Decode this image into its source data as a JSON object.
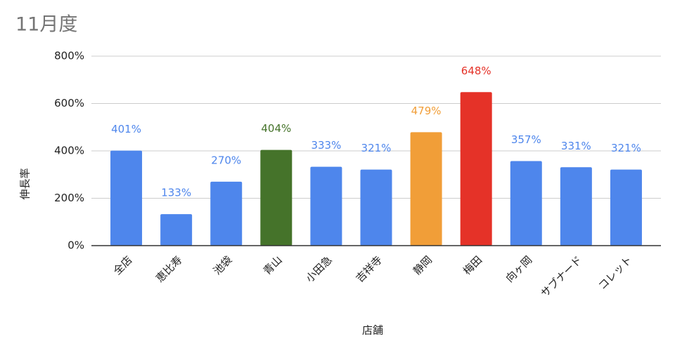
{
  "chart_data": {
    "type": "bar",
    "title": "11月度",
    "x_label": "店舗",
    "y_label": "伸長率",
    "categories": [
      "全店",
      "恵比寿",
      "池袋",
      "青山",
      "小田急",
      "吉祥寺",
      "静岡",
      "梅田",
      "向ヶ岡",
      "サブナード",
      "コレット"
    ],
    "values": [
      401,
      133,
      270,
      404,
      333,
      321,
      479,
      648,
      357,
      331,
      321
    ],
    "value_labels": [
      "401%",
      "133%",
      "270%",
      "404%",
      "333%",
      "321%",
      "479%",
      "648%",
      "357%",
      "331%",
      "321%"
    ],
    "colors": [
      "#4e86ec",
      "#4e86ec",
      "#4e86ec",
      "#45732a",
      "#4e86ec",
      "#4e86ec",
      "#f19e38",
      "#e53228",
      "#4e86ec",
      "#4e86ec",
      "#4e86ec"
    ],
    "ylim": [
      0,
      800
    ],
    "yticks": [
      {
        "value": 0,
        "label": "0%"
      },
      {
        "value": 200,
        "label": "200%"
      },
      {
        "value": 400,
        "label": "400%"
      },
      {
        "value": 600,
        "label": "600%"
      },
      {
        "value": 800,
        "label": "800%"
      }
    ],
    "grid": true
  }
}
